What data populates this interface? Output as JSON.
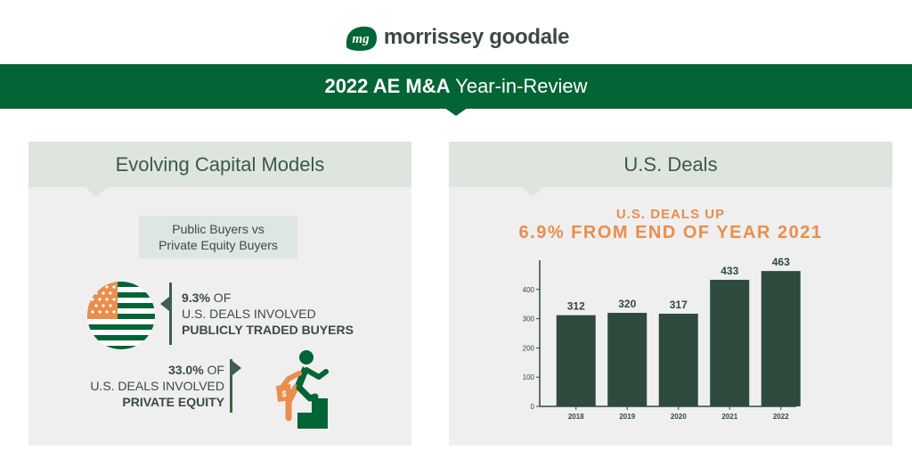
{
  "logo": {
    "mark": "mg",
    "name": "morrissey goodale"
  },
  "banner": {
    "title_bold": "2022 AE M&A",
    "title_rest": " Year-in-Review"
  },
  "left_panel": {
    "heading": "Evolving Capital Models",
    "label_line1": "Public Buyers vs",
    "label_line2": "Private Equity Buyers",
    "stat_public": {
      "pct": "9.3%",
      "of": " OF",
      "line2": "U.S. DEALS INVOLVED",
      "line3": "PUBLICLY TRADED BUYERS",
      "value": 9.3
    },
    "stat_private": {
      "pct": "33.0%",
      "of": " OF",
      "line2": "U.S. DEALS INVOLVED",
      "line3": "PRIVATE EQUITY",
      "value": 33.0
    },
    "icons": [
      "us-flag-icon",
      "stair-climber-icon",
      "money-bag-icon"
    ]
  },
  "right_panel": {
    "heading": "U.S. Deals",
    "headline_line1": "U.S. DEALS UP",
    "headline_line2": "6.9% FROM END OF YEAR 2021"
  },
  "colors": {
    "brand_green": "#036535",
    "bar_dark": "#2e4a3d",
    "accent_orange": "#e98e4c",
    "panel_bg": "#efefef",
    "panel_head_bg": "#dee5df"
  },
  "chart_data": {
    "type": "bar",
    "categories": [
      "2018",
      "2019",
      "2020",
      "2021",
      "2022"
    ],
    "values": [
      312,
      320,
      317,
      433,
      463
    ],
    "data_labels": [
      "312",
      "320",
      "317",
      "433",
      "463"
    ],
    "yticks": [
      0,
      100,
      200,
      300,
      400
    ],
    "ylim": [
      0,
      500
    ],
    "title": "",
    "xlabel": "",
    "ylabel": "",
    "grid": false
  }
}
